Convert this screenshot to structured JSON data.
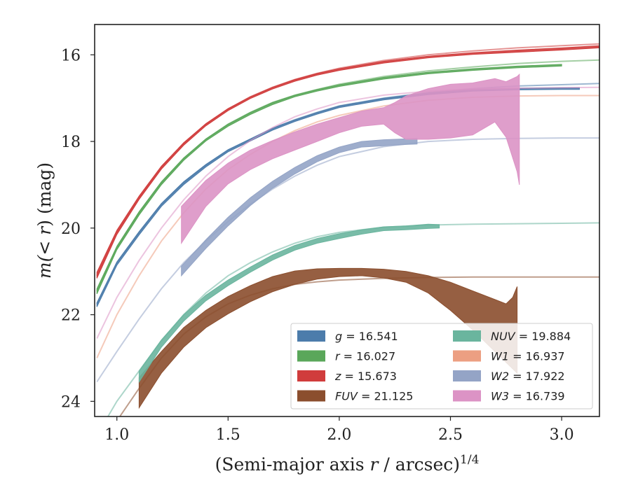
{
  "chart_data": {
    "type": "line",
    "title": "",
    "xlabel": {
      "prefix": "(Semi-major axis ",
      "var": "r",
      "suffix": " / arcsec)",
      "sup": "1/4"
    },
    "ylabel": {
      "prefix": "m(",
      "var": "< r",
      "suffix": ") (mag)"
    },
    "xlim": [
      0.9,
      3.17
    ],
    "ylim": [
      24.35,
      15.3
    ],
    "y_inverted": true,
    "xticks": [
      1.0,
      1.5,
      2.0,
      2.5,
      3.0
    ],
    "xtick_labels": [
      "1.0",
      "1.5",
      "2.0",
      "2.5",
      "3.0"
    ],
    "yticks": [
      16,
      18,
      20,
      22,
      24
    ],
    "ytick_labels": [
      "16",
      "18",
      "20",
      "22",
      "24"
    ],
    "grid": false,
    "legend_position": "lower-right",
    "legend_columns": 2,
    "series": [
      {
        "name": "g = 16.541",
        "label_var": "g",
        "label_value": "16.541",
        "color": "#4c7cab",
        "model": [
          [
            0.91,
            21.75
          ],
          [
            1.0,
            20.8
          ],
          [
            1.1,
            20.1
          ],
          [
            1.2,
            19.45
          ],
          [
            1.3,
            18.95
          ],
          [
            1.4,
            18.55
          ],
          [
            1.5,
            18.2
          ],
          [
            1.6,
            17.95
          ],
          [
            1.7,
            17.7
          ],
          [
            1.8,
            17.5
          ],
          [
            1.9,
            17.33
          ],
          [
            2.0,
            17.18
          ],
          [
            2.2,
            17.0
          ],
          [
            2.4,
            16.87
          ],
          [
            2.6,
            16.78
          ],
          [
            2.8,
            16.72
          ],
          [
            3.0,
            16.69
          ],
          [
            3.17,
            16.66
          ]
        ],
        "band": {
          "x": [
            0.91,
            1.0,
            1.1,
            1.2,
            1.3,
            1.4,
            1.5,
            1.6,
            1.7,
            1.8,
            1.9,
            2.0,
            2.2,
            2.4,
            2.6,
            2.8,
            3.0,
            3.08
          ],
          "lower": [
            21.72,
            20.78,
            20.08,
            19.43,
            18.93,
            18.53,
            18.19,
            17.94,
            17.69,
            17.5,
            17.33,
            17.18,
            17.0,
            16.88,
            16.8,
            16.77,
            16.76,
            16.76
          ],
          "upper": [
            21.82,
            20.86,
            20.16,
            19.5,
            19.0,
            18.59,
            18.24,
            17.99,
            17.74,
            17.54,
            17.37,
            17.22,
            17.04,
            16.92,
            16.84,
            16.81,
            16.8,
            16.8
          ]
        }
      },
      {
        "name": "r = 16.027",
        "label_var": "r",
        "label_value": "16.027",
        "color": "#5aa75a",
        "model": [
          [
            0.91,
            21.45
          ],
          [
            1.0,
            20.45
          ],
          [
            1.1,
            19.65
          ],
          [
            1.2,
            18.95
          ],
          [
            1.3,
            18.4
          ],
          [
            1.4,
            17.95
          ],
          [
            1.5,
            17.6
          ],
          [
            1.6,
            17.33
          ],
          [
            1.7,
            17.1
          ],
          [
            1.8,
            16.93
          ],
          [
            1.9,
            16.8
          ],
          [
            2.0,
            16.68
          ],
          [
            2.2,
            16.5
          ],
          [
            2.4,
            16.37
          ],
          [
            2.6,
            16.28
          ],
          [
            2.8,
            16.2
          ],
          [
            3.0,
            16.15
          ],
          [
            3.17,
            16.12
          ]
        ],
        "band": {
          "x": [
            0.91,
            1.0,
            1.1,
            1.2,
            1.3,
            1.4,
            1.5,
            1.6,
            1.7,
            1.8,
            1.9,
            2.0,
            2.2,
            2.4,
            2.6,
            2.8,
            3.0
          ],
          "lower": [
            21.4,
            20.42,
            19.62,
            18.93,
            18.38,
            17.94,
            17.6,
            17.33,
            17.1,
            16.93,
            16.8,
            16.69,
            16.52,
            16.4,
            16.32,
            16.26,
            16.22
          ],
          "upper": [
            21.52,
            20.5,
            19.7,
            19.0,
            18.44,
            17.99,
            17.65,
            17.38,
            17.15,
            16.97,
            16.84,
            16.73,
            16.56,
            16.44,
            16.36,
            16.3,
            16.26
          ]
        }
      },
      {
        "name": "z = 15.673",
        "label_var": "z",
        "label_value": "15.673",
        "color": "#d03c3c",
        "model": [
          [
            0.91,
            21.1
          ],
          [
            1.0,
            20.1
          ],
          [
            1.1,
            19.3
          ],
          [
            1.2,
            18.6
          ],
          [
            1.3,
            18.05
          ],
          [
            1.4,
            17.6
          ],
          [
            1.5,
            17.25
          ],
          [
            1.6,
            16.97
          ],
          [
            1.7,
            16.75
          ],
          [
            1.8,
            16.57
          ],
          [
            1.9,
            16.43
          ],
          [
            2.0,
            16.31
          ],
          [
            2.2,
            16.13
          ],
          [
            2.4,
            16.0
          ],
          [
            2.6,
            15.91
          ],
          [
            2.8,
            15.84
          ],
          [
            3.0,
            15.79
          ],
          [
            3.17,
            15.75
          ]
        ],
        "band": {
          "x": [
            0.91,
            1.0,
            1.1,
            1.2,
            1.3,
            1.4,
            1.5,
            1.6,
            1.7,
            1.8,
            1.9,
            2.0,
            2.2,
            2.4,
            2.6,
            2.8,
            3.0,
            3.17
          ],
          "lower": [
            21.02,
            20.05,
            19.26,
            18.57,
            18.03,
            17.59,
            17.24,
            16.97,
            16.75,
            16.57,
            16.43,
            16.32,
            16.15,
            16.03,
            15.95,
            15.89,
            15.84,
            15.79
          ],
          "upper": [
            21.16,
            20.15,
            19.34,
            18.64,
            18.09,
            17.64,
            17.29,
            17.01,
            16.79,
            16.61,
            16.47,
            16.36,
            16.19,
            16.07,
            15.99,
            15.94,
            15.89,
            15.84
          ]
        }
      },
      {
        "name": "FUV = 21.125",
        "label_var": "FUV",
        "label_value": "21.125",
        "color": "#8b4e2e",
        "model": [
          [
            1.0,
            24.45
          ],
          [
            1.1,
            23.7
          ],
          [
            1.2,
            23.0
          ],
          [
            1.3,
            22.45
          ],
          [
            1.4,
            22.05
          ],
          [
            1.5,
            21.75
          ],
          [
            1.6,
            21.55
          ],
          [
            1.7,
            21.4
          ],
          [
            1.8,
            21.3
          ],
          [
            1.9,
            21.24
          ],
          [
            2.0,
            21.2
          ],
          [
            2.2,
            21.16
          ],
          [
            2.4,
            21.14
          ],
          [
            2.6,
            21.13
          ],
          [
            2.8,
            21.13
          ],
          [
            3.0,
            21.13
          ],
          [
            3.17,
            21.13
          ]
        ],
        "band": {
          "x": [
            1.1,
            1.2,
            1.3,
            1.4,
            1.5,
            1.6,
            1.7,
            1.8,
            1.9,
            2.0,
            2.1,
            2.2,
            2.3,
            2.4,
            2.5,
            2.6,
            2.7,
            2.75,
            2.78,
            2.8
          ],
          "lower": [
            23.45,
            22.85,
            22.3,
            21.9,
            21.58,
            21.33,
            21.12,
            20.99,
            20.94,
            20.93,
            20.93,
            20.95,
            21.0,
            21.1,
            21.25,
            21.45,
            21.65,
            21.75,
            21.6,
            21.35
          ],
          "upper": [
            24.15,
            23.35,
            22.75,
            22.3,
            21.98,
            21.7,
            21.47,
            21.3,
            21.18,
            21.12,
            21.1,
            21.15,
            21.25,
            21.5,
            21.9,
            22.35,
            22.85,
            23.1,
            23.25,
            23.35
          ]
        }
      },
      {
        "name": "NUV = 19.884",
        "label_var": "NUV",
        "label_value": "19.884",
        "color": "#6ab59e",
        "model": [
          [
            0.96,
            24.35
          ],
          [
            1.0,
            24.0
          ],
          [
            1.1,
            23.3
          ],
          [
            1.2,
            22.6
          ],
          [
            1.3,
            22.0
          ],
          [
            1.4,
            21.5
          ],
          [
            1.5,
            21.1
          ],
          [
            1.6,
            20.8
          ],
          [
            1.7,
            20.55
          ],
          [
            1.8,
            20.35
          ],
          [
            1.9,
            20.2
          ],
          [
            2.0,
            20.1
          ],
          [
            2.2,
            19.98
          ],
          [
            2.4,
            19.93
          ],
          [
            2.6,
            19.91
          ],
          [
            2.8,
            19.9
          ],
          [
            3.0,
            19.89
          ],
          [
            3.17,
            19.88
          ]
        ],
        "band": {
          "x": [
            1.1,
            1.2,
            1.3,
            1.4,
            1.5,
            1.6,
            1.7,
            1.8,
            1.9,
            2.0,
            2.1,
            2.2,
            2.3,
            2.4,
            2.45
          ],
          "lower": [
            23.3,
            22.58,
            22.0,
            21.55,
            21.2,
            20.9,
            20.62,
            20.4,
            20.24,
            20.13,
            20.04,
            19.97,
            19.95,
            19.91,
            19.92
          ],
          "upper": [
            23.55,
            22.75,
            22.15,
            21.68,
            21.33,
            21.02,
            20.74,
            20.51,
            20.35,
            20.24,
            20.14,
            20.06,
            20.04,
            20.01,
            20.0
          ]
        }
      },
      {
        "name": "W1 = 16.937",
        "label_var": "W1",
        "label_value": "16.937",
        "color": "#ec9f82",
        "model": [
          [
            0.91,
            23.0
          ],
          [
            1.0,
            22.0
          ],
          [
            1.1,
            21.1
          ],
          [
            1.2,
            20.3
          ],
          [
            1.3,
            19.65
          ],
          [
            1.4,
            19.1
          ],
          [
            1.5,
            18.65
          ],
          [
            1.6,
            18.3
          ],
          [
            1.7,
            18.0
          ],
          [
            1.8,
            17.75
          ],
          [
            1.9,
            17.55
          ],
          [
            2.0,
            17.4
          ],
          [
            2.2,
            17.18
          ],
          [
            2.4,
            17.05
          ],
          [
            2.6,
            16.98
          ],
          [
            2.8,
            16.95
          ],
          [
            3.0,
            16.94
          ],
          [
            3.17,
            16.94
          ]
        ],
        "band": null
      },
      {
        "name": "W2 = 17.922",
        "label_var": "W2",
        "label_value": "17.922",
        "color": "#94a4c6",
        "model": [
          [
            0.91,
            23.55
          ],
          [
            1.0,
            22.85
          ],
          [
            1.1,
            22.1
          ],
          [
            1.2,
            21.4
          ],
          [
            1.3,
            20.8
          ],
          [
            1.4,
            20.3
          ],
          [
            1.5,
            19.85
          ],
          [
            1.6,
            19.45
          ],
          [
            1.7,
            19.1
          ],
          [
            1.8,
            18.8
          ],
          [
            1.9,
            18.55
          ],
          [
            2.0,
            18.35
          ],
          [
            2.2,
            18.12
          ],
          [
            2.4,
            18.0
          ],
          [
            2.6,
            17.95
          ],
          [
            2.8,
            17.93
          ],
          [
            3.0,
            17.92
          ],
          [
            3.17,
            17.92
          ]
        ],
        "band": {
          "x": [
            1.29,
            1.4,
            1.5,
            1.6,
            1.7,
            1.8,
            1.9,
            2.0,
            2.1,
            2.2,
            2.3,
            2.35
          ],
          "lower": [
            20.88,
            20.27,
            19.75,
            19.3,
            18.92,
            18.6,
            18.33,
            18.13,
            18.0,
            17.96,
            17.94,
            17.93
          ],
          "upper": [
            21.1,
            20.47,
            19.95,
            19.48,
            19.08,
            18.75,
            18.47,
            18.26,
            18.13,
            18.1,
            18.07,
            18.06
          ]
        }
      },
      {
        "name": "W3 = 16.739",
        "label_var": "W3",
        "label_value": "16.739",
        "color": "#dc93c5",
        "model": [
          [
            0.91,
            22.55
          ],
          [
            1.0,
            21.6
          ],
          [
            1.1,
            20.75
          ],
          [
            1.2,
            20.0
          ],
          [
            1.3,
            19.35
          ],
          [
            1.4,
            18.8
          ],
          [
            1.5,
            18.35
          ],
          [
            1.6,
            17.98
          ],
          [
            1.7,
            17.68
          ],
          [
            1.8,
            17.43
          ],
          [
            1.9,
            17.25
          ],
          [
            2.0,
            17.1
          ],
          [
            2.2,
            16.93
          ],
          [
            2.4,
            16.84
          ],
          [
            2.6,
            16.79
          ],
          [
            2.8,
            16.77
          ],
          [
            3.0,
            16.76
          ],
          [
            3.17,
            16.75
          ]
        ],
        "band": {
          "x": [
            1.29,
            1.4,
            1.5,
            1.6,
            1.7,
            1.8,
            1.9,
            2.0,
            2.1,
            2.2,
            2.25,
            2.3,
            2.4,
            2.5,
            2.6,
            2.7,
            2.75,
            2.8,
            2.81
          ],
          "lower": [
            19.5,
            18.9,
            18.5,
            18.2,
            17.98,
            17.78,
            17.6,
            17.45,
            17.3,
            17.22,
            17.1,
            16.95,
            16.78,
            16.68,
            16.65,
            16.55,
            16.62,
            16.5,
            16.45
          ],
          "upper": [
            20.35,
            19.5,
            18.98,
            18.65,
            18.4,
            18.2,
            18.0,
            17.8,
            17.65,
            17.6,
            17.8,
            17.95,
            17.95,
            17.92,
            17.85,
            17.55,
            17.9,
            18.7,
            19.0
          ]
        }
      }
    ]
  }
}
